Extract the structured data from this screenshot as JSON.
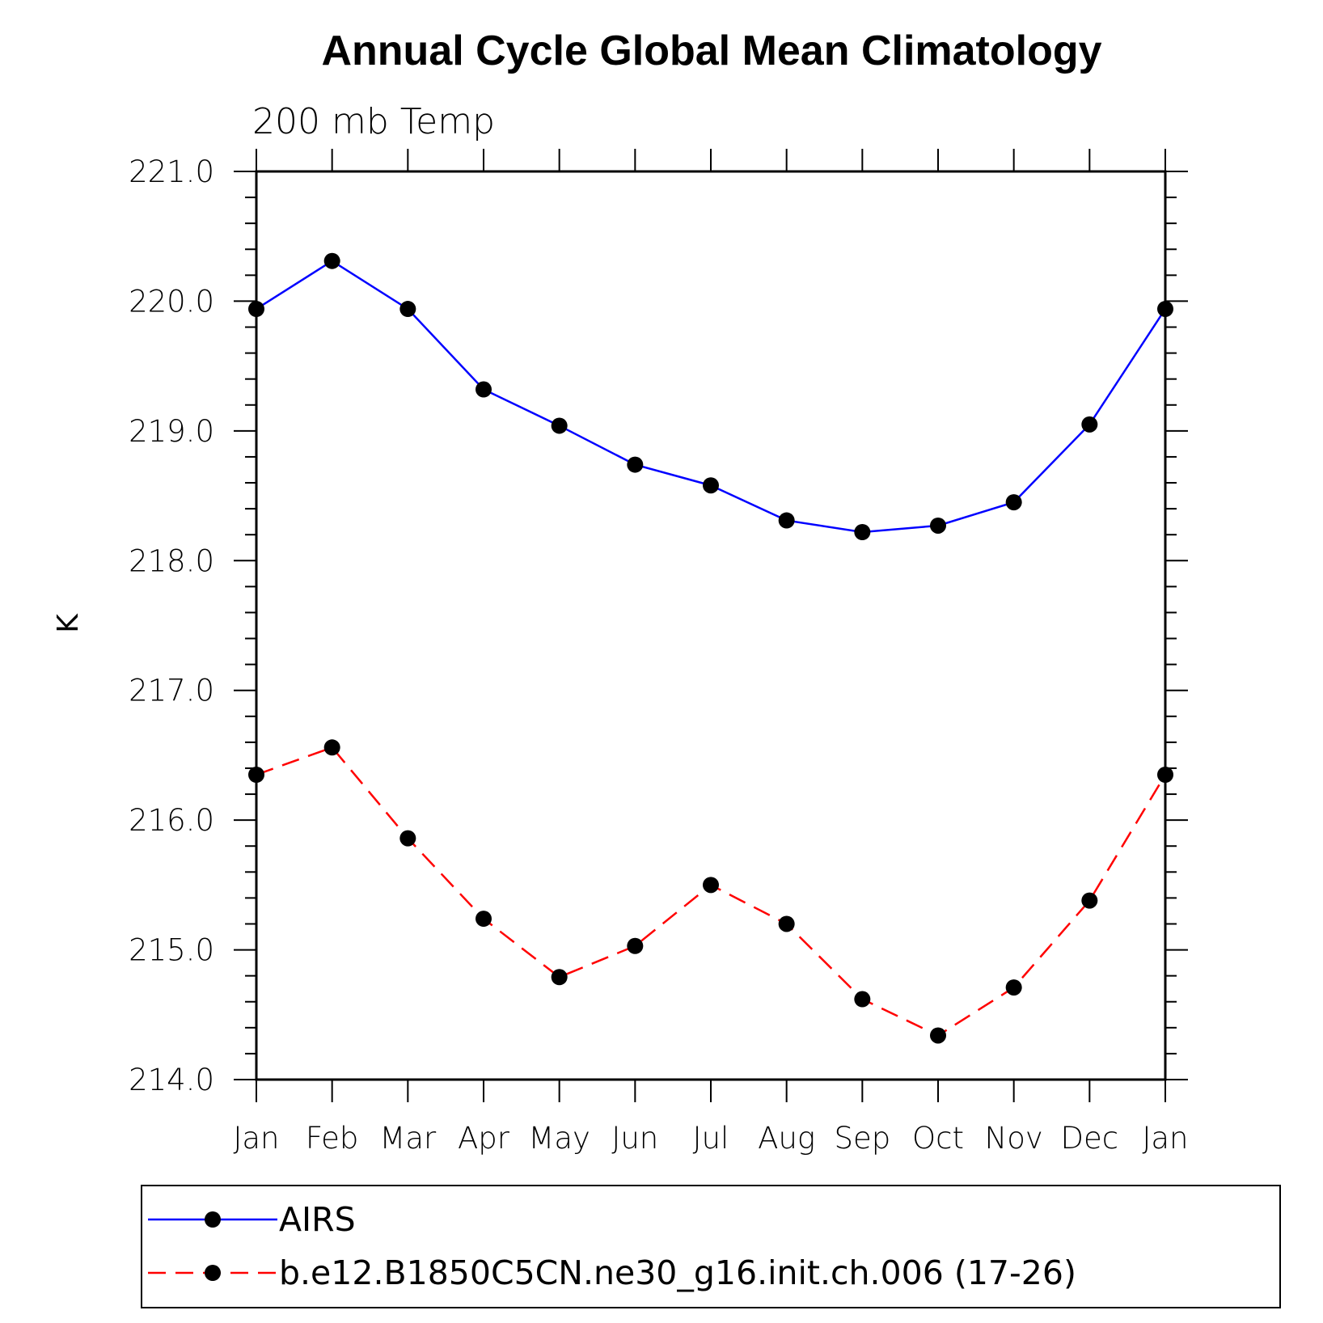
{
  "chart_data": {
    "type": "line",
    "title": "Annual Cycle Global Mean Climatology",
    "subtitle": "200 mb Temp",
    "ylabel": "K",
    "xlabel": "",
    "categories": [
      "Jan",
      "Feb",
      "Mar",
      "Apr",
      "May",
      "Jun",
      "Jul",
      "Aug",
      "Sep",
      "Oct",
      "Nov",
      "Dec",
      "Jan"
    ],
    "ylim": [
      214.0,
      221.0
    ],
    "y_major_ticks": [
      "214.0",
      "215.0",
      "216.0",
      "217.0",
      "218.0",
      "219.0",
      "220.0",
      "221.0"
    ],
    "y_minor_step": 0.2,
    "grid": false,
    "legend_placement": "bottom",
    "series": [
      {
        "name": "AIRS",
        "color": "#0000ff",
        "line_style": "solid",
        "marker": "filled-circle",
        "values": [
          219.94,
          220.31,
          219.94,
          219.32,
          219.04,
          218.74,
          218.58,
          218.31,
          218.22,
          218.27,
          218.45,
          219.05,
          219.94
        ]
      },
      {
        "name": "b.e12.B1850C5CN.ne30_g16.init.ch.006 (17-26)",
        "color": "#ff0000",
        "line_style": "dashed",
        "marker": "filled-circle",
        "values": [
          216.35,
          216.56,
          215.86,
          215.24,
          214.79,
          215.03,
          215.5,
          215.2,
          214.62,
          214.34,
          214.71,
          215.38,
          216.35
        ]
      }
    ]
  }
}
